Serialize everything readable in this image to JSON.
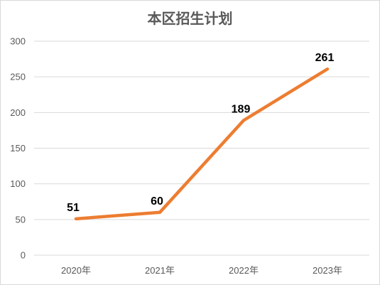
{
  "chart_data": {
    "type": "line",
    "title": "本区招生计划",
    "categories": [
      "2020年",
      "2021年",
      "2022年",
      "2023年"
    ],
    "series": [
      {
        "values": [
          51,
          60,
          189,
          261
        ],
        "color": "#ed7d31"
      }
    ],
    "ylim": [
      0,
      300
    ],
    "yticks": [
      0,
      50,
      100,
      150,
      200,
      250,
      300
    ],
    "grid": true,
    "legend": "none",
    "gridline_color": "#d9d9d9",
    "text_color": "#595959"
  }
}
